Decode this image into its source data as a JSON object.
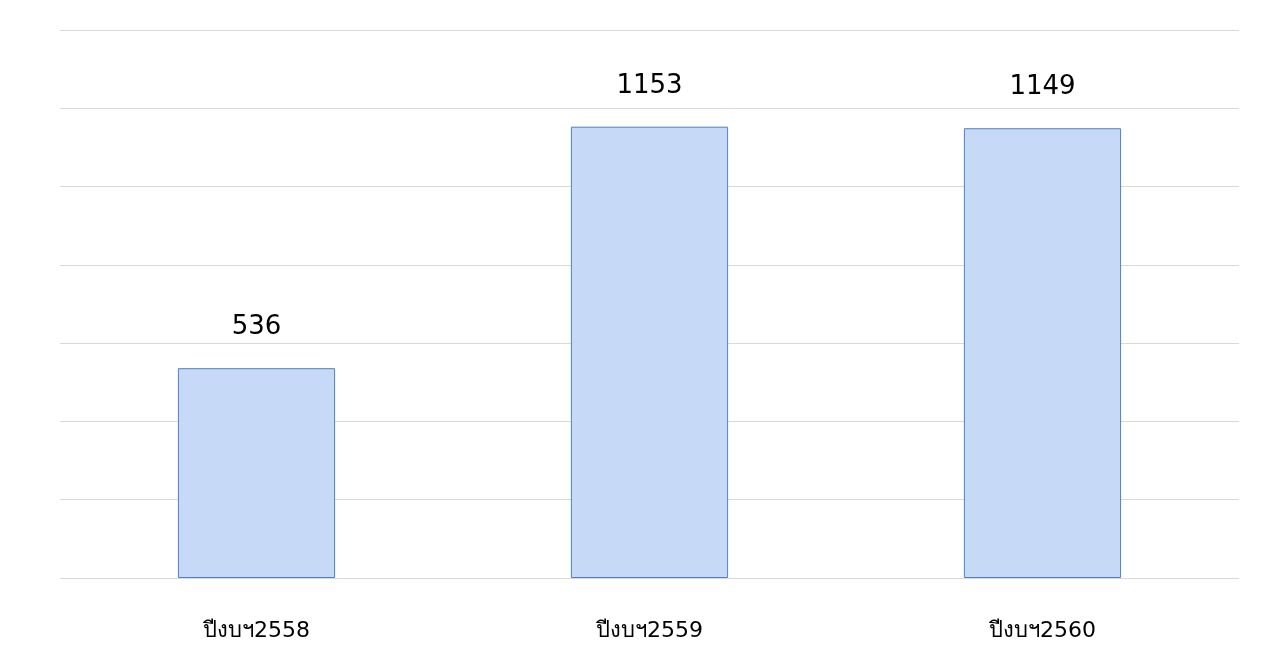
{
  "chart_data": {
    "type": "bar",
    "categories": [
      "ปีงบฯ2558",
      "ปีงบฯ2559",
      "ปีงบฯ2560"
    ],
    "values": [
      536,
      1153,
      1149
    ],
    "color": "#c6daf8",
    "data_labels": true,
    "ylim": [
      0,
      1400
    ],
    "yticks": [
      {
        "value": 0,
        "label": null
      },
      {
        "value": 200,
        "label": null
      },
      {
        "value": 400,
        "label": null
      },
      {
        "value": 600,
        "label": null
      },
      {
        "value": 800,
        "label": null
      },
      {
        "value": 1000,
        "label": null
      },
      {
        "value": 1200,
        "label": null
      },
      {
        "value": 1400,
        "label": null
      }
    ],
    "grid": "y",
    "tick_labels": "x"
  }
}
